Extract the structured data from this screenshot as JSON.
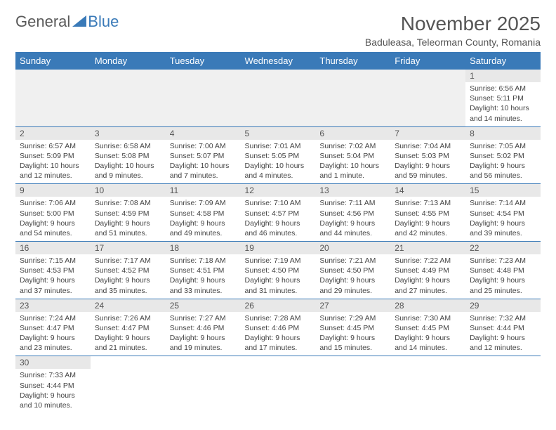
{
  "logo": {
    "part1": "General",
    "part2": "Blue"
  },
  "title": "November 2025",
  "subtitle": "Baduleasa, Teleorman County, Romania",
  "colors": {
    "header_bg": "#3a7ab8",
    "header_text": "#ffffff",
    "daynum_bg": "#e8e8e8",
    "border": "#3a7ab8",
    "empty_bg": "#f0f0f0"
  },
  "weekdays": [
    "Sunday",
    "Monday",
    "Tuesday",
    "Wednesday",
    "Thursday",
    "Friday",
    "Saturday"
  ],
  "weeks": [
    [
      null,
      null,
      null,
      null,
      null,
      null,
      {
        "n": "1",
        "sunrise": "Sunrise: 6:56 AM",
        "sunset": "Sunset: 5:11 PM",
        "daylight": "Daylight: 10 hours and 14 minutes."
      }
    ],
    [
      {
        "n": "2",
        "sunrise": "Sunrise: 6:57 AM",
        "sunset": "Sunset: 5:09 PM",
        "daylight": "Daylight: 10 hours and 12 minutes."
      },
      {
        "n": "3",
        "sunrise": "Sunrise: 6:58 AM",
        "sunset": "Sunset: 5:08 PM",
        "daylight": "Daylight: 10 hours and 9 minutes."
      },
      {
        "n": "4",
        "sunrise": "Sunrise: 7:00 AM",
        "sunset": "Sunset: 5:07 PM",
        "daylight": "Daylight: 10 hours and 7 minutes."
      },
      {
        "n": "5",
        "sunrise": "Sunrise: 7:01 AM",
        "sunset": "Sunset: 5:05 PM",
        "daylight": "Daylight: 10 hours and 4 minutes."
      },
      {
        "n": "6",
        "sunrise": "Sunrise: 7:02 AM",
        "sunset": "Sunset: 5:04 PM",
        "daylight": "Daylight: 10 hours and 1 minute."
      },
      {
        "n": "7",
        "sunrise": "Sunrise: 7:04 AM",
        "sunset": "Sunset: 5:03 PM",
        "daylight": "Daylight: 9 hours and 59 minutes."
      },
      {
        "n": "8",
        "sunrise": "Sunrise: 7:05 AM",
        "sunset": "Sunset: 5:02 PM",
        "daylight": "Daylight: 9 hours and 56 minutes."
      }
    ],
    [
      {
        "n": "9",
        "sunrise": "Sunrise: 7:06 AM",
        "sunset": "Sunset: 5:00 PM",
        "daylight": "Daylight: 9 hours and 54 minutes."
      },
      {
        "n": "10",
        "sunrise": "Sunrise: 7:08 AM",
        "sunset": "Sunset: 4:59 PM",
        "daylight": "Daylight: 9 hours and 51 minutes."
      },
      {
        "n": "11",
        "sunrise": "Sunrise: 7:09 AM",
        "sunset": "Sunset: 4:58 PM",
        "daylight": "Daylight: 9 hours and 49 minutes."
      },
      {
        "n": "12",
        "sunrise": "Sunrise: 7:10 AM",
        "sunset": "Sunset: 4:57 PM",
        "daylight": "Daylight: 9 hours and 46 minutes."
      },
      {
        "n": "13",
        "sunrise": "Sunrise: 7:11 AM",
        "sunset": "Sunset: 4:56 PM",
        "daylight": "Daylight: 9 hours and 44 minutes."
      },
      {
        "n": "14",
        "sunrise": "Sunrise: 7:13 AM",
        "sunset": "Sunset: 4:55 PM",
        "daylight": "Daylight: 9 hours and 42 minutes."
      },
      {
        "n": "15",
        "sunrise": "Sunrise: 7:14 AM",
        "sunset": "Sunset: 4:54 PM",
        "daylight": "Daylight: 9 hours and 39 minutes."
      }
    ],
    [
      {
        "n": "16",
        "sunrise": "Sunrise: 7:15 AM",
        "sunset": "Sunset: 4:53 PM",
        "daylight": "Daylight: 9 hours and 37 minutes."
      },
      {
        "n": "17",
        "sunrise": "Sunrise: 7:17 AM",
        "sunset": "Sunset: 4:52 PM",
        "daylight": "Daylight: 9 hours and 35 minutes."
      },
      {
        "n": "18",
        "sunrise": "Sunrise: 7:18 AM",
        "sunset": "Sunset: 4:51 PM",
        "daylight": "Daylight: 9 hours and 33 minutes."
      },
      {
        "n": "19",
        "sunrise": "Sunrise: 7:19 AM",
        "sunset": "Sunset: 4:50 PM",
        "daylight": "Daylight: 9 hours and 31 minutes."
      },
      {
        "n": "20",
        "sunrise": "Sunrise: 7:21 AM",
        "sunset": "Sunset: 4:50 PM",
        "daylight": "Daylight: 9 hours and 29 minutes."
      },
      {
        "n": "21",
        "sunrise": "Sunrise: 7:22 AM",
        "sunset": "Sunset: 4:49 PM",
        "daylight": "Daylight: 9 hours and 27 minutes."
      },
      {
        "n": "22",
        "sunrise": "Sunrise: 7:23 AM",
        "sunset": "Sunset: 4:48 PM",
        "daylight": "Daylight: 9 hours and 25 minutes."
      }
    ],
    [
      {
        "n": "23",
        "sunrise": "Sunrise: 7:24 AM",
        "sunset": "Sunset: 4:47 PM",
        "daylight": "Daylight: 9 hours and 23 minutes."
      },
      {
        "n": "24",
        "sunrise": "Sunrise: 7:26 AM",
        "sunset": "Sunset: 4:47 PM",
        "daylight": "Daylight: 9 hours and 21 minutes."
      },
      {
        "n": "25",
        "sunrise": "Sunrise: 7:27 AM",
        "sunset": "Sunset: 4:46 PM",
        "daylight": "Daylight: 9 hours and 19 minutes."
      },
      {
        "n": "26",
        "sunrise": "Sunrise: 7:28 AM",
        "sunset": "Sunset: 4:46 PM",
        "daylight": "Daylight: 9 hours and 17 minutes."
      },
      {
        "n": "27",
        "sunrise": "Sunrise: 7:29 AM",
        "sunset": "Sunset: 4:45 PM",
        "daylight": "Daylight: 9 hours and 15 minutes."
      },
      {
        "n": "28",
        "sunrise": "Sunrise: 7:30 AM",
        "sunset": "Sunset: 4:45 PM",
        "daylight": "Daylight: 9 hours and 14 minutes."
      },
      {
        "n": "29",
        "sunrise": "Sunrise: 7:32 AM",
        "sunset": "Sunset: 4:44 PM",
        "daylight": "Daylight: 9 hours and 12 minutes."
      }
    ],
    [
      {
        "n": "30",
        "sunrise": "Sunrise: 7:33 AM",
        "sunset": "Sunset: 4:44 PM",
        "daylight": "Daylight: 9 hours and 10 minutes."
      },
      null,
      null,
      null,
      null,
      null,
      null
    ]
  ]
}
